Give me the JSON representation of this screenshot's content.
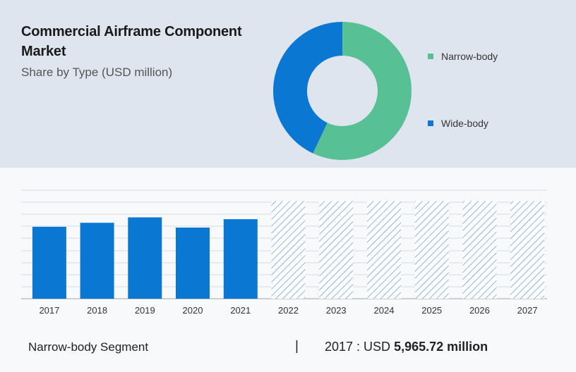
{
  "header": {
    "title": "Commercial Airframe Component Market",
    "subtitle": "Share by Type (USD million)"
  },
  "chart_data": [
    {
      "type": "pie",
      "variant": "donut",
      "segments": [
        {
          "label": "Narrow-body",
          "share": 0.57,
          "color": "#57c195"
        },
        {
          "label": "Wide-body",
          "share": 0.43,
          "color": "#0a77d3"
        }
      ],
      "legend_position": "right"
    },
    {
      "type": "bar",
      "categories": [
        "2017",
        "2018",
        "2019",
        "2020",
        "2021",
        "2022",
        "2023",
        "2024",
        "2025",
        "2026",
        "2027"
      ],
      "values": [
        5965.72,
        6300,
        6750,
        5900,
        6600,
        null,
        null,
        null,
        null,
        null,
        null
      ],
      "forecast_categories": [
        "2022",
        "2023",
        "2024",
        "2025",
        "2026",
        "2027"
      ],
      "forecast_values": [
        8100,
        8100,
        8100,
        8100,
        8100,
        8100
      ],
      "ylim": [
        0,
        9000
      ],
      "grid": true,
      "actual_color": "#0a77d3",
      "forecast_style": "hatched",
      "forecast_color": "#4a90d9"
    }
  ],
  "footer": {
    "segment_label": "Narrow-body Segment",
    "separator": "|",
    "year_prefix": "2017 : USD ",
    "value_text": "5,965.72 million"
  }
}
